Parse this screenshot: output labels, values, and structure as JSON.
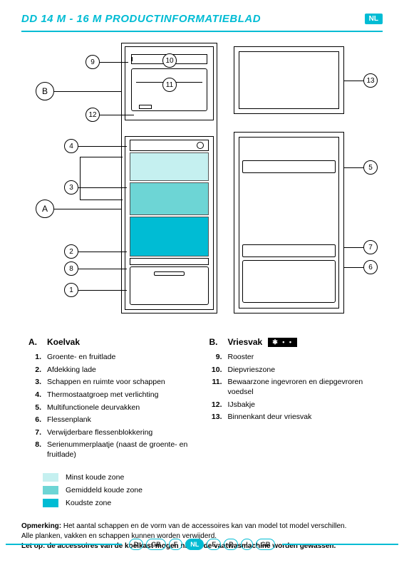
{
  "header": {
    "title": "DD 14 M - 16 M PRODUCTINFORMATIEBLAD",
    "lang": "NL"
  },
  "diagram": {
    "callouts_left": [
      {
        "id": "B",
        "big": true
      },
      {
        "id": "9"
      },
      {
        "id": "12"
      },
      {
        "id": "4"
      },
      {
        "id": "3"
      },
      {
        "id": "A",
        "big": true
      },
      {
        "id": "2"
      },
      {
        "id": "8"
      },
      {
        "id": "1"
      }
    ],
    "callouts_center": [
      {
        "id": "10"
      },
      {
        "id": "11"
      }
    ],
    "callouts_right": [
      {
        "id": "13"
      },
      {
        "id": "5"
      },
      {
        "id": "7"
      },
      {
        "id": "6"
      }
    ],
    "zone_colors": {
      "light": "#c5f0f0",
      "mid": "#6dd5d5",
      "cold": "#00bcd4"
    }
  },
  "sectionA": {
    "letter": "A.",
    "title": "Koelvak",
    "items": [
      {
        "n": "1.",
        "t": "Groente- en fruitlade"
      },
      {
        "n": "2.",
        "t": "Afdekking lade"
      },
      {
        "n": "3.",
        "t": "Schappen en ruimte voor schappen"
      },
      {
        "n": "4.",
        "t": "Thermostaatgroep met verlichting"
      },
      {
        "n": "5.",
        "t": "Multifunctionele deurvakken"
      },
      {
        "n": "6.",
        "t": "Flessenplank"
      },
      {
        "n": "7.",
        "t": "Verwijderbare flessenblokkering"
      },
      {
        "n": "8.",
        "t": "Serienummerplaatje (naast de groente- en fruitlade)"
      }
    ]
  },
  "sectionB": {
    "letter": "B.",
    "title": "Vriesvak",
    "badge": "✱ • •",
    "items": [
      {
        "n": "9.",
        "t": "Rooster"
      },
      {
        "n": "10.",
        "t": "Diepvrieszone"
      },
      {
        "n": "11.",
        "t": "Bewaarzone ingevroren en diepgevroren voedsel"
      },
      {
        "n": "12.",
        "t": "IJsbakje"
      },
      {
        "n": "13.",
        "t": "Binnenkant deur vriesvak"
      }
    ]
  },
  "legend": [
    {
      "color": "#c5f0f0",
      "label": "Minst koude zone"
    },
    {
      "color": "#6dd5d5",
      "label": "Gemiddeld koude zone"
    },
    {
      "color": "#00bcd4",
      "label": "Koudste zone"
    }
  ],
  "note": {
    "l1_bold": "Opmerking:",
    "l1": " Het aantal schappen en de vorm van de accessoires kan van model tot model verschillen.",
    "l2": "Alle planken, vakken en schappen kunnen worden verwijderd.",
    "l3": "Let op: de accessoires van de koelkast mogen niet in de vaatwasmachine worden gewassen."
  },
  "footer": [
    "D",
    "GB",
    "F",
    "NL",
    "E",
    "P",
    "I",
    "GR"
  ],
  "footer_active": "NL"
}
